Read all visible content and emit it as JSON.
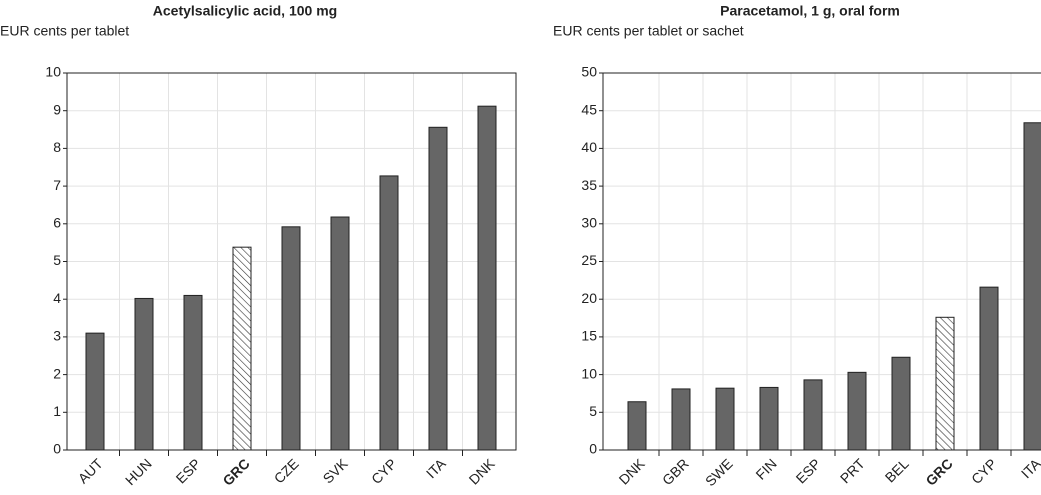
{
  "chart_data": [
    {
      "type": "bar",
      "title": "Acetylsalicylic acid, 100 mg",
      "y_label": "EUR cents per tablet",
      "categories": [
        "AUT",
        "HUN",
        "ESP",
        "GRC",
        "CZE",
        "SVK",
        "CYP",
        "ITA",
        "DNK"
      ],
      "values": [
        3.1,
        4.02,
        4.1,
        5.38,
        5.92,
        6.18,
        7.27,
        8.56,
        9.12
      ],
      "color": "#666666",
      "highlight_index": 3,
      "ylim": [
        0,
        10
      ],
      "yticks": [
        0,
        1,
        2,
        3,
        4,
        5,
        6,
        7,
        8,
        9,
        10
      ],
      "grid": true
    },
    {
      "type": "bar",
      "title": "Paracetamol, 1 g, oral form",
      "y_label": "EUR cents per tablet or sachet",
      "categories": [
        "DNK",
        "GBR",
        "SWE",
        "FIN",
        "ESP",
        "PRT",
        "BEL",
        "GRC",
        "CYP",
        "ITA"
      ],
      "values": [
        6.4,
        8.1,
        8.2,
        8.3,
        9.3,
        10.3,
        12.3,
        17.6,
        21.6,
        43.4
      ],
      "color": "#666666",
      "highlight_index": 7,
      "ylim": [
        0,
        50
      ],
      "yticks": [
        0,
        5,
        10,
        15,
        20,
        25,
        30,
        35,
        40,
        45,
        50
      ],
      "grid": true
    }
  ]
}
